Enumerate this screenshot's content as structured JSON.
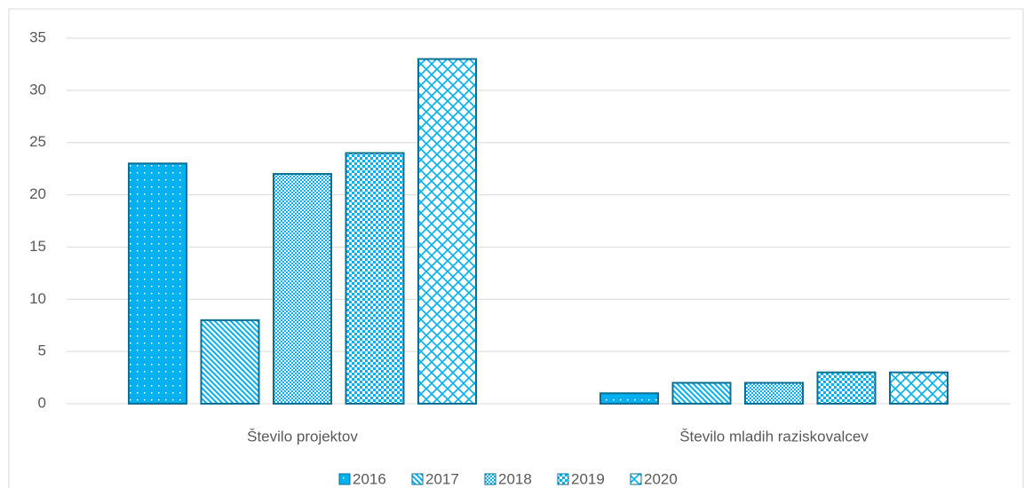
{
  "chart_data": {
    "type": "bar",
    "categories": [
      "Število projektov",
      "Število mladih raziskovalcev"
    ],
    "series": [
      {
        "name": "2016",
        "color": "#00b0f0",
        "values": [
          23,
          1
        ]
      },
      {
        "name": "2017",
        "color": "#00b0f0",
        "values": [
          8,
          2
        ]
      },
      {
        "name": "2018",
        "color": "#00b0f0",
        "values": [
          22,
          2
        ]
      },
      {
        "name": "2019",
        "color": "#00b0f0",
        "values": [
          24,
          3
        ]
      },
      {
        "name": "2020",
        "color": "#00b0f0",
        "values": [
          33,
          3
        ]
      }
    ],
    "ylim": [
      0,
      35
    ],
    "yticks": [
      0,
      5,
      10,
      15,
      20,
      25,
      30,
      35
    ],
    "grid": true,
    "legend": "bottom"
  }
}
